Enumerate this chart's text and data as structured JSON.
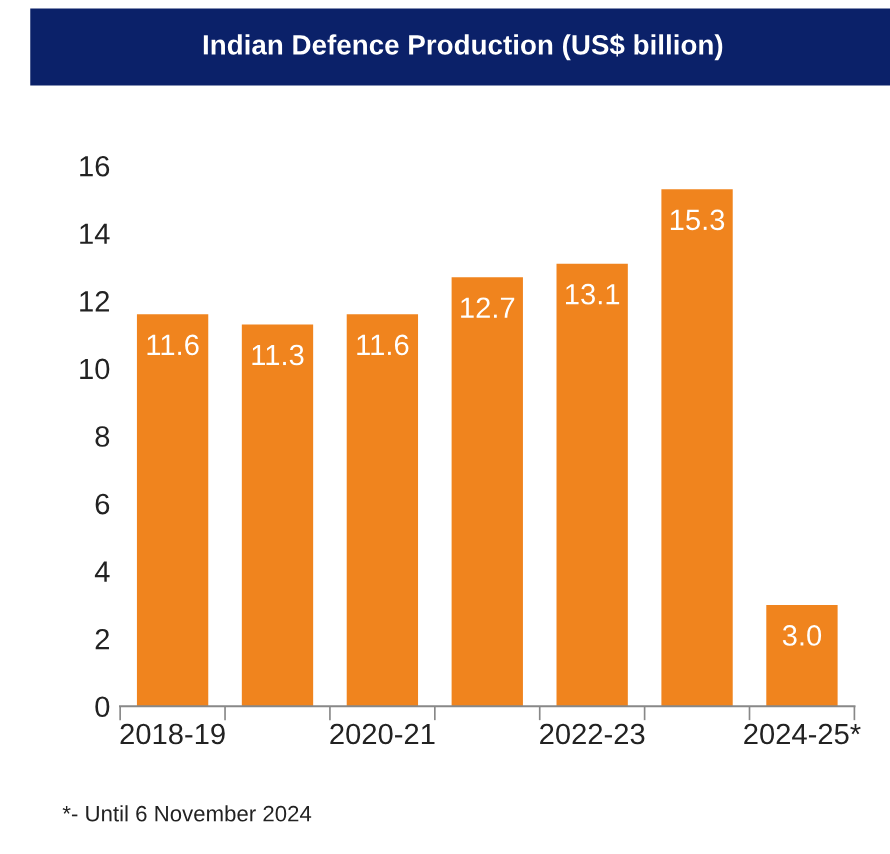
{
  "chart_data": {
    "type": "bar",
    "title": "Indian Defence Production (US$ billion)",
    "categories": [
      "2018-19",
      null,
      "2020-21",
      null,
      "2022-23",
      null,
      "2024-25*"
    ],
    "values": [
      11.6,
      11.3,
      11.6,
      12.7,
      13.1,
      15.3,
      3.0
    ],
    "value_labels": [
      "11.6",
      "11.3",
      "11.6",
      "12.7",
      "13.1",
      "15.3",
      "3.0"
    ],
    "color": "#f0841e",
    "ylim": [
      0,
      16
    ],
    "yticks": [
      0,
      2,
      4,
      6,
      8,
      10,
      12,
      14,
      16
    ],
    "grid": false,
    "annotations": [
      "*- Until 6 November 2024"
    ]
  }
}
